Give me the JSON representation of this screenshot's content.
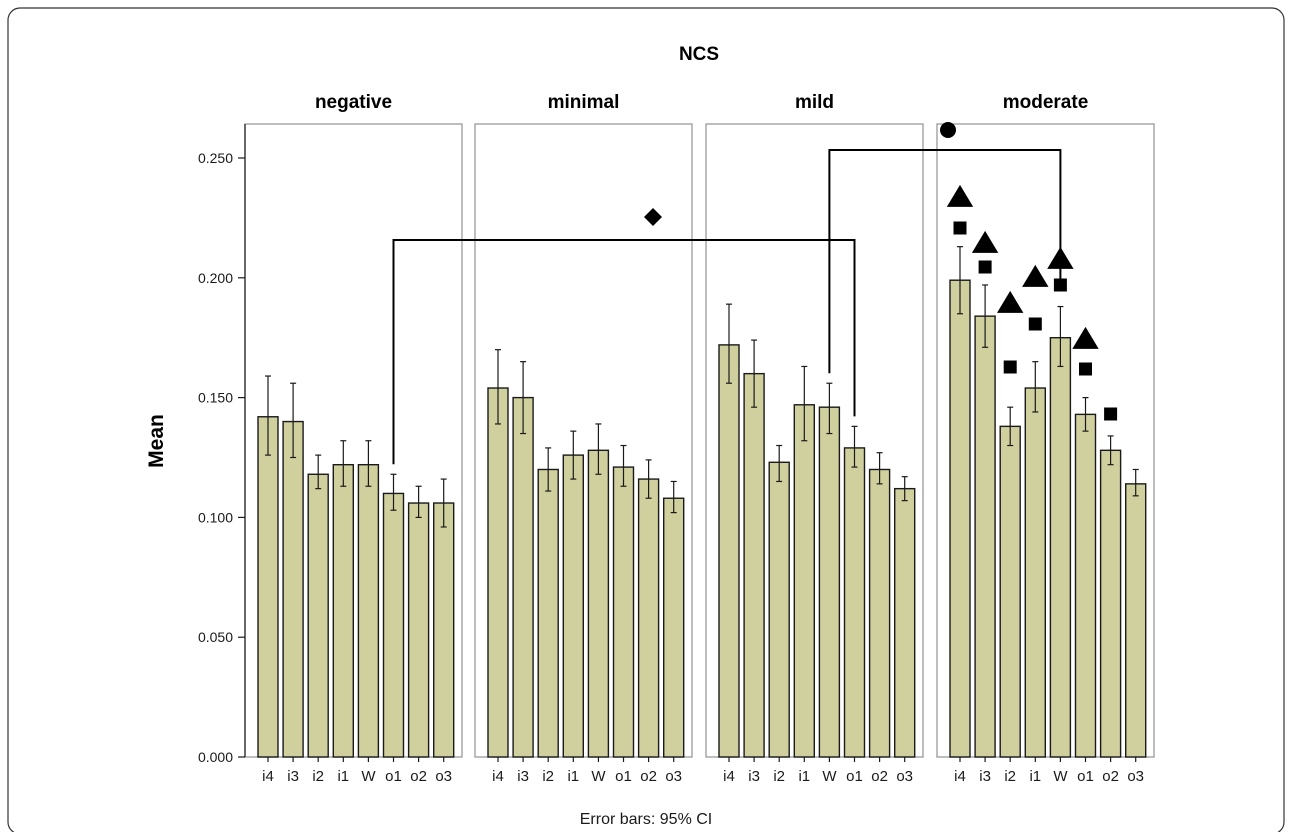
{
  "chart_data": {
    "type": "bar",
    "title": "NCS",
    "ylabel": "Mean",
    "xlabel": "",
    "footnote": "Error bars: 95% CI",
    "ylim": [
      0,
      0.26
    ],
    "yticks": [
      "0.000",
      "0.050",
      "0.100",
      "0.150",
      "0.200",
      "0.250"
    ],
    "categories": [
      "i4",
      "i3",
      "i2",
      "i1",
      "W",
      "o1",
      "o2",
      "o3"
    ],
    "panels": [
      {
        "name": "negative",
        "values": [
          0.142,
          0.14,
          0.118,
          0.122,
          0.122,
          0.11,
          0.106,
          0.106
        ],
        "ci_low": [
          0.126,
          0.125,
          0.112,
          0.113,
          0.113,
          0.103,
          0.1,
          0.096
        ],
        "ci_high": [
          0.159,
          0.156,
          0.126,
          0.132,
          0.132,
          0.118,
          0.113,
          0.116
        ]
      },
      {
        "name": "minimal",
        "values": [
          0.154,
          0.15,
          0.12,
          0.126,
          0.128,
          0.121,
          0.116,
          0.108
        ],
        "ci_low": [
          0.139,
          0.135,
          0.111,
          0.116,
          0.118,
          0.113,
          0.108,
          0.102
        ],
        "ci_high": [
          0.17,
          0.165,
          0.129,
          0.136,
          0.139,
          0.13,
          0.124,
          0.115
        ]
      },
      {
        "name": "mild",
        "values": [
          0.172,
          0.16,
          0.123,
          0.147,
          0.146,
          0.129,
          0.12,
          0.112
        ],
        "ci_low": [
          0.156,
          0.146,
          0.115,
          0.132,
          0.135,
          0.121,
          0.114,
          0.107
        ],
        "ci_high": [
          0.189,
          0.174,
          0.13,
          0.163,
          0.156,
          0.138,
          0.127,
          0.117
        ]
      },
      {
        "name": "moderate",
        "values": [
          0.199,
          0.184,
          0.138,
          0.154,
          0.175,
          0.143,
          0.128,
          0.114
        ],
        "ci_low": [
          0.185,
          0.171,
          0.13,
          0.144,
          0.163,
          0.136,
          0.122,
          0.109
        ],
        "ci_high": [
          0.213,
          0.197,
          0.146,
          0.165,
          0.188,
          0.15,
          0.134,
          0.12
        ]
      }
    ],
    "annotations": {
      "brackets": [
        {
          "from_panel": "negative",
          "from_category": "o1",
          "to_panel": "mild",
          "to_category": "o1",
          "marker": "diamond"
        },
        {
          "from_panel": "mild",
          "from_category": "W",
          "to_panel": "moderate",
          "to_category": "W",
          "marker": "circle"
        }
      ],
      "moderate_markers": [
        {
          "category": "i4",
          "markers": [
            "triangle",
            "square"
          ]
        },
        {
          "category": "i3",
          "markers": [
            "triangle",
            "square"
          ]
        },
        {
          "category": "i2",
          "markers": [
            "triangle",
            "square"
          ]
        },
        {
          "category": "i1",
          "markers": [
            "triangle",
            "square"
          ]
        },
        {
          "category": "W",
          "markers": [
            "triangle",
            "square"
          ]
        },
        {
          "category": "o1",
          "markers": [
            "triangle",
            "square"
          ]
        },
        {
          "category": "o2",
          "markers": [
            "square"
          ]
        }
      ]
    }
  }
}
